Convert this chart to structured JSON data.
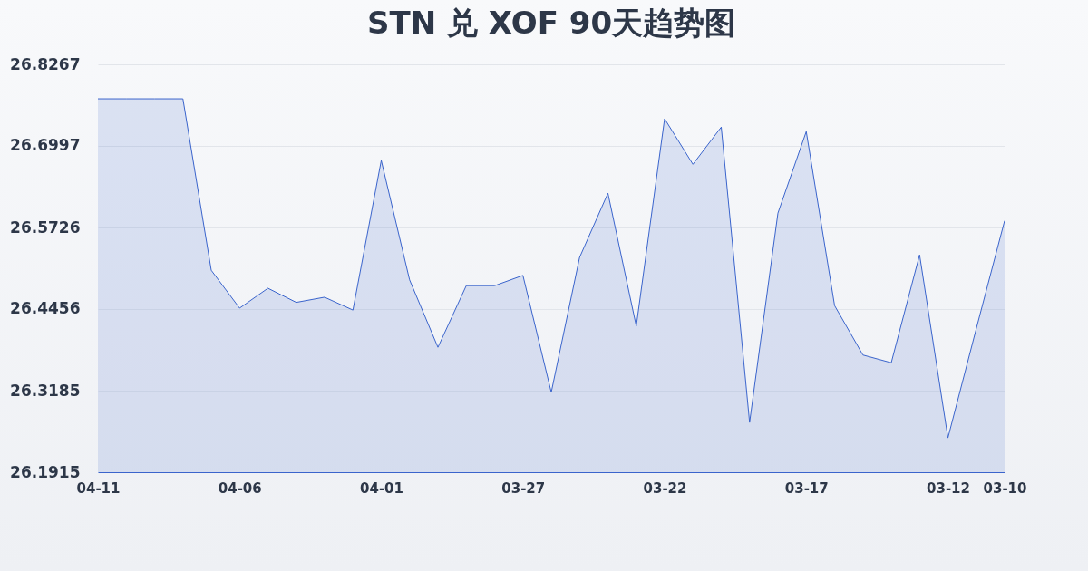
{
  "chart_data": {
    "type": "area",
    "title": "STN 兑 XOF 90天趋势图",
    "categories": [
      "04-11",
      null,
      null,
      null,
      null,
      "04-06",
      null,
      null,
      null,
      null,
      "04-01",
      null,
      null,
      null,
      null,
      "03-27",
      null,
      null,
      null,
      null,
      "03-22",
      null,
      null,
      null,
      null,
      "03-17",
      null,
      null,
      null,
      null,
      "03-12",
      null,
      "03-10"
    ],
    "series": [
      {
        "color": "#3a64cc",
        "values": [
          26.773,
          26.773,
          26.773,
          26.773,
          26.506,
          26.447,
          26.478,
          26.456,
          26.464,
          26.444,
          26.677,
          26.491,
          26.386,
          26.482,
          26.482,
          26.498,
          26.316,
          26.526,
          26.626,
          26.419,
          26.742,
          26.671,
          26.729,
          26.269,
          26.595,
          26.722,
          26.451,
          26.374,
          26.362,
          26.53,
          26.245,
          26.415,
          26.583
        ]
      }
    ],
    "ylim": [
      26.1915,
      26.8267
    ],
    "yticks": [
      26.1915,
      26.3185,
      26.4456,
      26.5726,
      26.6997,
      26.8267
    ],
    "grid": "y"
  }
}
